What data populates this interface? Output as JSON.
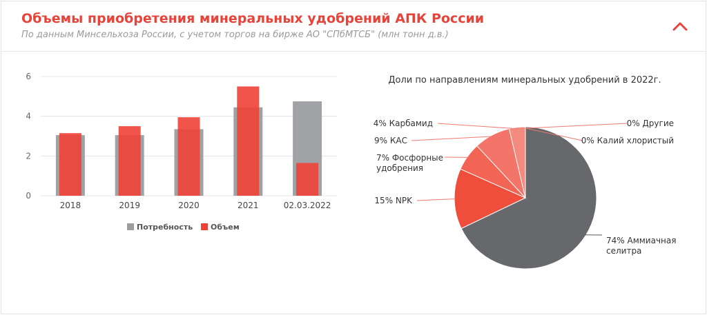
{
  "header": {
    "title": "Объемы приобретения минеральных удобрений АПК России",
    "subtitle": "По данным Минсельхоза России, с учетом торгов на бирже АО \"СПбМТСБ\" (млн тонн д.в.)",
    "collapse_icon": "chevron-up-icon"
  },
  "colors": {
    "accent": "#e8433a",
    "demand": "#9b9da0",
    "volume": "#ef4136",
    "pie_main": "#66686c"
  },
  "chart_data": [
    {
      "type": "bar",
      "categories": [
        "2018",
        "2019",
        "2020",
        "2021",
        "02.03.2022"
      ],
      "ylim": [
        0,
        6
      ],
      "yticks": [
        "0",
        "2",
        "4",
        "6"
      ],
      "series": [
        {
          "name": "Потребность",
          "values": [
            3.05,
            3.05,
            3.35,
            4.45,
            4.75
          ]
        },
        {
          "name": "Объем",
          "values": [
            3.15,
            3.5,
            3.95,
            5.5,
            1.65
          ]
        }
      ],
      "legend": "bottom"
    },
    {
      "type": "pie",
      "title": "Доли по направлениям минеральных удобрений в 2022г.",
      "slices": [
        {
          "label": "74% Аммиачная селитра",
          "lines": [
            "74% Аммиачная",
            "селитра"
          ],
          "value": 74,
          "color": "#66686c"
        },
        {
          "label": "15% NPK",
          "lines": [
            "15% NPK"
          ],
          "value": 15,
          "color": "#f04e3c"
        },
        {
          "label": "7% Фосфорные удобрения",
          "lines": [
            "7% Фосфорные",
            "удобрения"
          ],
          "value": 7,
          "color": "#f26555"
        },
        {
          "label": "9% КАС",
          "lines": [
            "9% КАС"
          ],
          "value": 9,
          "color": "#f37468"
        },
        {
          "label": "4% Карбамид",
          "lines": [
            "4% Карбамид"
          ],
          "value": 4,
          "color": "#f4897f"
        },
        {
          "label": "0% Другие",
          "lines": [
            "0% Другие"
          ],
          "value": 0,
          "color": "#f7a59d"
        },
        {
          "label": "0% Калий хлористый",
          "lines": [
            "0% Калий хлористый"
          ],
          "value": 0,
          "color": "#f9bcb6"
        }
      ]
    }
  ]
}
